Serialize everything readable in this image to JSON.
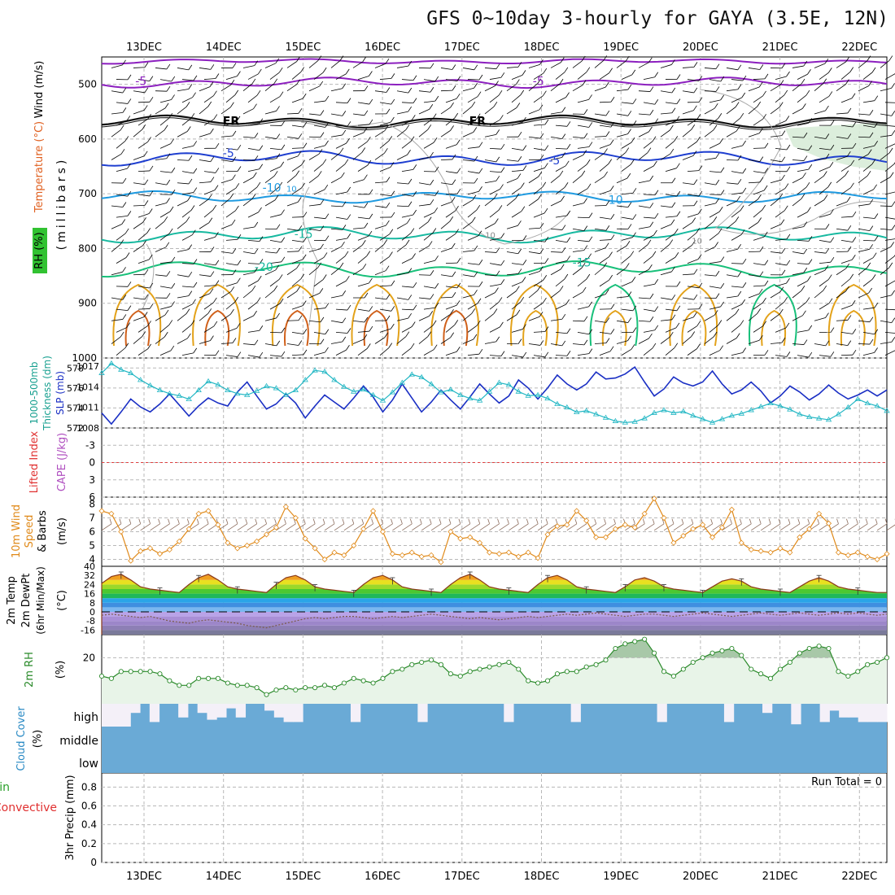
{
  "title": "GFS 0~10day 3-hourly for GAYA (3.5E, 12N)",
  "run_total": "Run Total = 0",
  "colors": {
    "grid": "#b8b8b8",
    "purple": "#8c1fbf",
    "black": "#111111",
    "blue": "#1f3fd0",
    "lightblue": "#1f9ae0",
    "teal": "#17b9a0",
    "green": "#18c07a",
    "orange": "#e3a21a",
    "darkorange": "#d0601a",
    "cyan": "#23b7c4",
    "navy": "#1a2fc4",
    "wind_orange": "#e08a1a",
    "rh_green": "#2a8a2a",
    "cloud": "#6aaad6",
    "cloud_none": "#f4f0f8"
  },
  "chart_data": {
    "x_ticks": [
      "13DEC",
      "14DEC",
      "15DEC",
      "16DEC",
      "17DEC",
      "18DEC",
      "19DEC",
      "20DEC",
      "21DEC",
      "22DEC"
    ],
    "panels": [
      {
        "id": "upper",
        "type": "contour",
        "ylabels": [
          "Wind (m/s)",
          "Temperature (°C)",
          "RH (%)"
        ],
        "yaxis_label": "(millibars)",
        "yticks": [
          500,
          600,
          700,
          800,
          900,
          1000
        ],
        "ylim": [
          450,
          1000
        ],
        "contour_labels": [
          {
            "text": "-5",
            "x": 0.3,
            "y": 495
          },
          {
            "text": "-5",
            "x": 5.3,
            "y": 495
          },
          {
            "text": "FR",
            "x": 1.4,
            "y": 568
          },
          {
            "text": "FR",
            "x": 4.5,
            "y": 568
          },
          {
            "text": "-5",
            "x": 1.4,
            "y": 627
          },
          {
            "text": "-5",
            "x": 5.5,
            "y": 640
          },
          {
            "text": "-10",
            "x": 1.9,
            "y": 690
          },
          {
            "text": "-10",
            "x": 6.2,
            "y": 712
          },
          {
            "text": "-15",
            "x": 2.3,
            "y": 775
          },
          {
            "text": "-15",
            "x": 5.8,
            "y": 827
          },
          {
            "text": "-20",
            "x": 1.8,
            "y": 835
          },
          {
            "text": "10",
            "x": 2.2,
            "y": 690
          },
          {
            "text": "10",
            "x": 4.7,
            "y": 775
          },
          {
            "text": "10",
            "x": 7.3,
            "y": 785
          }
        ]
      },
      {
        "id": "thickness",
        "type": "line",
        "ylabels": [
          "Thickness (dm)",
          "1000-500mb",
          "SLP (mb)"
        ],
        "yticks_left": [
          572,
          574,
          576,
          578
        ],
        "yticks_right": [
          1008,
          1011,
          1014,
          1017
        ],
        "ylim_left": [
          572,
          579
        ],
        "series": [
          {
            "name": "Thickness",
            "color_key": "navy",
            "values": [
              573.5,
              572.4,
              573.6,
              574.9,
              574.1,
              573.6,
              574.4,
              575.4,
              574.3,
              573.2,
              574.2,
              575.0,
              574.5,
              574.2,
              575.6,
              576.6,
              575.2,
              573.9,
              574.4,
              575.4,
              574.5,
              573.0,
              574.2,
              575.3,
              574.6,
              573.9,
              575.0,
              576.2,
              575.1,
              573.6,
              574.8,
              576.4,
              575.0,
              573.6,
              574.6,
              575.8,
              574.8,
              573.9,
              575.1,
              576.4,
              575.4,
              574.5,
              575.2,
              576.8,
              576.0,
              574.9,
              576.0,
              577.3,
              576.4,
              575.8,
              576.4,
              577.6,
              576.9,
              577.0,
              577.4,
              578.1,
              576.6,
              575.2,
              575.9,
              577.1,
              576.5,
              576.2,
              576.6,
              577.7,
              576.4,
              575.4,
              575.8,
              576.6,
              575.7,
              574.5,
              575.2,
              576.2,
              575.6,
              574.8,
              575.4,
              576.3,
              575.5,
              574.9,
              575.3,
              575.8,
              575.2,
              575.8
            ]
          },
          {
            "name": "SLP",
            "color_key": "cyan",
            "values": [
              1016.0,
              1017.4,
              1016.5,
              1016.0,
              1015.0,
              1014.2,
              1013.5,
              1013.0,
              1012.7,
              1012.2,
              1013.5,
              1014.8,
              1014.3,
              1013.5,
              1013.0,
              1012.8,
              1013.4,
              1014.1,
              1013.8,
              1012.8,
              1013.5,
              1015.0,
              1016.4,
              1016.2,
              1015.0,
              1014.0,
              1013.3,
              1013.6,
              1012.8,
              1012.0,
              1013.2,
              1014.6,
              1015.8,
              1015.4,
              1014.4,
              1013.2,
              1013.6,
              1012.8,
              1012.3,
              1012.0,
              1013.3,
              1014.6,
              1014.3,
              1013.3,
              1012.7,
              1012.8,
              1012.3,
              1011.5,
              1011.0,
              1010.3,
              1010.5,
              1010.0,
              1009.5,
              1009.0,
              1008.8,
              1008.9,
              1009.4,
              1010.2,
              1010.6,
              1010.2,
              1010.4,
              1009.8,
              1009.3,
              1008.8,
              1009.3,
              1009.8,
              1010.1,
              1010.6,
              1011.1,
              1011.6,
              1011.2,
              1010.7,
              1010.0,
              1009.6,
              1009.4,
              1009.2,
              1010.0,
              1011.0,
              1012.2,
              1011.6,
              1011.2,
              1010.5
            ]
          }
        ]
      },
      {
        "id": "cape",
        "type": "line",
        "ylabels": [
          "Lifted Index",
          "CAPE (J/kg)"
        ],
        "yticks_left": [
          "-3",
          "0",
          "3",
          "6"
        ],
        "ylim_left": [
          -6,
          6
        ],
        "reference_line": 0,
        "series": []
      },
      {
        "id": "wind10m",
        "type": "line",
        "ylabels": [
          "10m Wind",
          "Speed",
          "& Barbs",
          "(m/s)"
        ],
        "yticks_left": [
          4,
          5,
          6,
          7,
          8
        ],
        "ylim_left": [
          3.5,
          8.5
        ],
        "series": [
          {
            "name": "10m Wind Speed",
            "color_key": "wind_orange",
            "values": [
              7.5,
              7.3,
              6.0,
              3.9,
              4.6,
              4.8,
              4.4,
              4.7,
              5.3,
              6.2,
              7.3,
              7.5,
              6.5,
              5.2,
              4.8,
              5.0,
              5.3,
              5.8,
              6.3,
              7.8,
              7.0,
              5.5,
              4.8,
              4.0,
              4.5,
              4.3,
              5.0,
              6.2,
              7.5,
              6.0,
              4.4,
              4.3,
              4.5,
              4.2,
              4.3,
              3.8,
              6.0,
              5.5,
              5.6,
              5.2,
              4.5,
              4.4,
              4.5,
              4.2,
              4.5,
              4.1,
              5.8,
              6.4,
              6.5,
              7.5,
              6.8,
              5.6,
              5.6,
              6.2,
              6.5,
              6.3,
              7.3,
              8.4,
              7.0,
              5.2,
              5.7,
              6.2,
              6.5,
              5.6,
              6.3,
              7.6,
              5.2,
              4.7,
              4.6,
              4.5,
              4.8,
              4.5,
              5.6,
              6.2,
              7.3,
              6.6,
              4.5,
              4.3,
              4.5,
              4.2,
              4.0,
              4.4
            ]
          }
        ]
      },
      {
        "id": "temp2m",
        "type": "area",
        "ylabels": [
          "2m Temp",
          "2m DewPt",
          "(6hr Min/Max)",
          "(°C)"
        ],
        "yticks_left": [
          -16,
          -8,
          0,
          8,
          16,
          24,
          32,
          40
        ],
        "ylim_left": [
          -20,
          40
        ],
        "series": [
          {
            "name": "2m Temp",
            "values": [
              25,
              31,
              33,
              28,
              22,
              20,
              19,
              18,
              17,
              24,
              30,
              33,
              28,
              22,
              20,
              19,
              18,
              17,
              24,
              30,
              32,
              28,
              22,
              20,
              19,
              18,
              17,
              24,
              30,
              32,
              28,
              22,
              20,
              19,
              18,
              17,
              24,
              30,
              33,
              28,
              22,
              20,
              19,
              18,
              17,
              24,
              30,
              32,
              28,
              22,
              20,
              19,
              18,
              17,
              22,
              28,
              30,
              27,
              22,
              20,
              19,
              18,
              17,
              22,
              27,
              29,
              27,
              22,
              20,
              19,
              18,
              17,
              22,
              27,
              30,
              27,
              22,
              20,
              19,
              18,
              17,
              17
            ]
          },
          {
            "name": "2m DewPt",
            "values": [
              -3,
              -2,
              -3,
              -4,
              -5,
              -4,
              -6,
              -8,
              -9,
              -10,
              -8,
              -7,
              -8,
              -9,
              -10,
              -12,
              -13,
              -14,
              -12,
              -10,
              -8,
              -6,
              -5,
              -6,
              -5,
              -4,
              -4,
              -5,
              -6,
              -5,
              -4,
              -5,
              -4,
              -3,
              -2,
              -3,
              -4,
              -5,
              -6,
              -5,
              -6,
              -7,
              -6,
              -5,
              -4,
              -5,
              -4,
              -3,
              -2,
              -3,
              -2,
              -1,
              -2,
              -3,
              -4,
              -3,
              -2,
              -2,
              -3,
              -4,
              -3,
              -2,
              -1,
              -2,
              -3,
              -4,
              -3,
              -2,
              -1,
              -2,
              -3,
              -2,
              -1,
              -2,
              -3,
              -2,
              -1,
              -2,
              -1,
              -2,
              -3,
              -2
            ]
          }
        ]
      },
      {
        "id": "rh2m",
        "type": "area",
        "ylabels": [
          "2m RH",
          "(%)"
        ],
        "yticks_left": [
          20
        ],
        "ylim_left": [
          0,
          30
        ],
        "series": [
          {
            "name": "2m RH",
            "color_key": "rh_green",
            "values": [
              12,
              11,
              14,
              14,
              14,
              14,
              13,
              10,
              8,
              8,
              11,
              11,
              11,
              9,
              8,
              8,
              7,
              4,
              6,
              7,
              6,
              7,
              7,
              8,
              7,
              9,
              11,
              10,
              9,
              11,
              14,
              15,
              17,
              18,
              19,
              17,
              13,
              12,
              14,
              15,
              16,
              17,
              18,
              15,
              10,
              9,
              10,
              13,
              14,
              14,
              16,
              17,
              19,
              24,
              26,
              27,
              28,
              22,
              14,
              12,
              15,
              18,
              20,
              22,
              23,
              24,
              21,
              15,
              13,
              11,
              15,
              18,
              22,
              24,
              25,
              24,
              14,
              12,
              14,
              17,
              18,
              20
            ]
          }
        ]
      },
      {
        "id": "cloud",
        "type": "area",
        "ylabels": [
          "Cloud Cover",
          "(%)"
        ],
        "yticks_left": [
          "high",
          "middle",
          "low"
        ],
        "series": [
          {
            "name": "high",
            "values": [
              0,
              0,
              0,
              0.6,
              1,
              0.2,
              1,
              1,
              0.4,
              1,
              0.6,
              0.3,
              0.4,
              0.8,
              0.4,
              1,
              1,
              0.7,
              0.4,
              0.2,
              0.2,
              1,
              1,
              1,
              1,
              1,
              0.2,
              1,
              1,
              1,
              1,
              1,
              1,
              0.2,
              1,
              1,
              1,
              1,
              1,
              1,
              1,
              1,
              0.2,
              1,
              1,
              1,
              1,
              1,
              1,
              0.2,
              1,
              1,
              1,
              1,
              1,
              1,
              1,
              1,
              0.2,
              1,
              1,
              1,
              1,
              1,
              1,
              0.2,
              1,
              1,
              1,
              0.6,
              1,
              1,
              0.1,
              1,
              1,
              0.2,
              0.7,
              0.4,
              0.4,
              0.2,
              0.2,
              0.2
            ]
          }
        ]
      },
      {
        "id": "precip",
        "type": "bar",
        "ylabels": [
          "Total / Rain",
          "Convective",
          "3hr Precip (mm)"
        ],
        "yticks_left": [
          "0",
          "0.2",
          "0.4",
          "0.6",
          "0.8"
        ],
        "ylim_left": [
          0,
          0.95
        ],
        "series": []
      }
    ]
  }
}
